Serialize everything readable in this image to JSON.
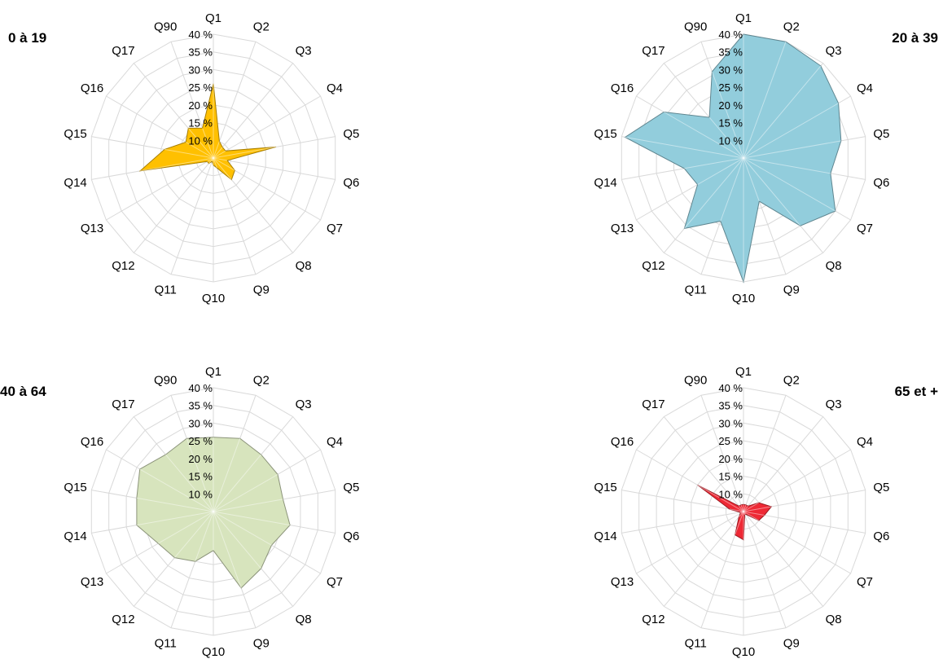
{
  "chart_data": [
    {
      "type": "radar",
      "title": "0 à 19",
      "title_placement": "top-left",
      "categories": [
        "Q1",
        "Q2",
        "Q3",
        "Q4",
        "Q5",
        "Q6",
        "Q7",
        "Q8",
        "Q9",
        "Q10",
        "Q11",
        "Q12",
        "Q13",
        "Q14",
        "Q15",
        "Q16",
        "Q17",
        "Q90"
      ],
      "tick_labels": [
        "10 %",
        "15 %",
        "20 %",
        "25 %",
        "30 %",
        "35 %",
        "40 %"
      ],
      "rlim": [
        5,
        40
      ],
      "color": "#ffc000",
      "values": [
        26,
        10,
        9,
        9,
        23,
        9,
        12,
        13,
        8,
        7,
        6,
        7,
        7,
        26,
        19,
        14,
        16,
        14
      ]
    },
    {
      "type": "radar",
      "title": "20 à 39",
      "title_placement": "top-right",
      "categories": [
        "Q1",
        "Q2",
        "Q3",
        "Q4",
        "Q5",
        "Q6",
        "Q7",
        "Q8",
        "Q9",
        "Q10",
        "Q11",
        "Q12",
        "Q13",
        "Q14",
        "Q15",
        "Q16",
        "Q17",
        "Q90"
      ],
      "tick_labels": [
        "10 %",
        "15 %",
        "20 %",
        "25 %",
        "30 %",
        "35 %",
        "40 %"
      ],
      "rlim": [
        5,
        40
      ],
      "color": "#92cddc",
      "values": [
        40,
        40,
        39,
        36,
        33,
        30,
        35,
        30,
        18,
        40,
        24,
        31,
        20,
        22,
        39,
        31,
        20,
        31
      ]
    },
    {
      "type": "radar",
      "title": "40 à 64",
      "title_placement": "top-left",
      "categories": [
        "Q1",
        "Q2",
        "Q3",
        "Q4",
        "Q5",
        "Q6",
        "Q7",
        "Q8",
        "Q9",
        "Q10",
        "Q11",
        "Q12",
        "Q13",
        "Q14",
        "Q15",
        "Q16",
        "Q17",
        "Q90"
      ],
      "tick_labels": [
        "10 %",
        "15 %",
        "20 %",
        "25 %",
        "30 %",
        "35 %",
        "40 %"
      ],
      "rlim": [
        5,
        40
      ],
      "color": "#d7e4bd",
      "values": [
        26,
        27,
        26,
        26,
        25,
        27,
        24,
        26,
        28,
        16,
        20,
        22,
        23,
        27,
        27,
        29,
        26,
        27
      ]
    },
    {
      "type": "radar",
      "title": "65 et +",
      "title_placement": "top-right",
      "categories": [
        "Q1",
        "Q2",
        "Q3",
        "Q4",
        "Q5",
        "Q6",
        "Q7",
        "Q8",
        "Q9",
        "Q10",
        "Q11",
        "Q12",
        "Q13",
        "Q14",
        "Q15",
        "Q16",
        "Q17",
        "Q90"
      ],
      "tick_labels": [
        "10 %",
        "15 %",
        "20 %",
        "25 %",
        "30 %",
        "35 %",
        "40 %"
      ],
      "rlim": [
        5,
        40
      ],
      "color": "#ee2935",
      "values": [
        7,
        7,
        7,
        10,
        13,
        11,
        10,
        6,
        6,
        13,
        12,
        7,
        6,
        6,
        9,
        20,
        7,
        7
      ]
    }
  ]
}
